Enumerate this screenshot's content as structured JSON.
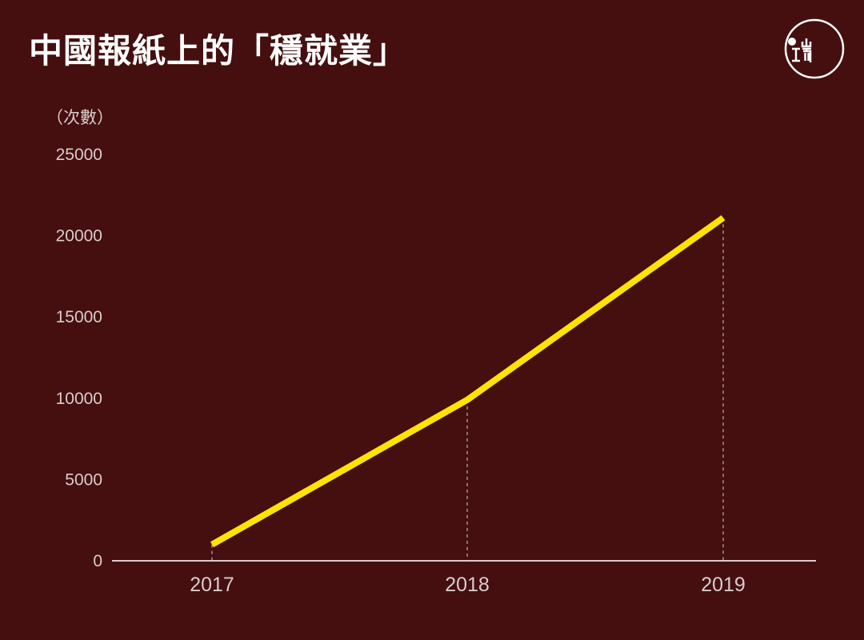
{
  "header": {
    "title": "中國報紙上的「穩就業」",
    "logo_icon": "initium-logo-icon"
  },
  "colors": {
    "background": "#450f0f",
    "line": "#ffe400",
    "axis": "#d9cccc"
  },
  "chart_data": {
    "type": "line",
    "title": "中國報紙上的「穩就業」",
    "ylabel": "（次數）",
    "xlabel": "",
    "categories": [
      "2017",
      "2018",
      "2019"
    ],
    "series": [
      {
        "values": [
          1000,
          9900,
          21100
        ]
      }
    ],
    "yticks": [
      "25000",
      "20000",
      "15000",
      "10000",
      "5000",
      "0"
    ],
    "ylim": [
      0,
      25000
    ],
    "grid": false,
    "dashed_drop_lines": true
  }
}
